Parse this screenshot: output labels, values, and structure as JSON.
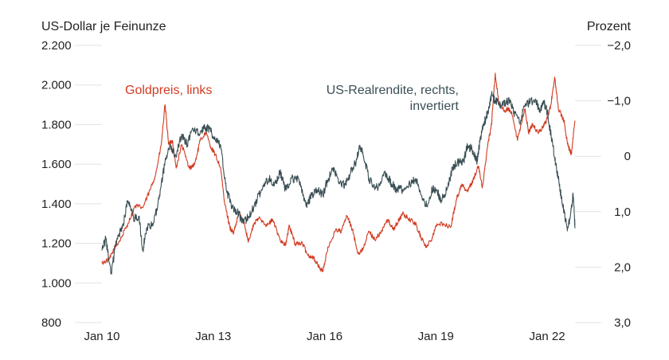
{
  "chart_data": {
    "type": "line",
    "x_start": 2010.0,
    "x_end": 2022.75,
    "left_axis": {
      "title": "US-Dollar je Feinunze",
      "ylim": [
        800,
        2200
      ],
      "ticks": [
        800,
        1000,
        1200,
        1400,
        1600,
        1800,
        2000,
        2200
      ],
      "tick_labels": [
        "800",
        "1.000",
        "1.200",
        "1.400",
        "1.600",
        "1.800",
        "2.000",
        "2.200"
      ]
    },
    "right_axis": {
      "title": "Prozent",
      "inverted": true,
      "ylim": [
        3.0,
        -2.0
      ],
      "ticks": [
        -2.0,
        -1.0,
        0,
        1.0,
        2.0,
        3.0
      ],
      "tick_labels": [
        "−2,0",
        "−1,0",
        "0",
        "1,0",
        "2,0",
        "3,0"
      ]
    },
    "x_ticks": [
      {
        "value": 2010,
        "label": "Jan 10"
      },
      {
        "value": 2013,
        "label": "Jan 13"
      },
      {
        "value": 2016,
        "label": "Jan 16"
      },
      {
        "value": 2019,
        "label": "Jan 19"
      },
      {
        "value": 2022,
        "label": "Jan 22"
      }
    ],
    "series": [
      {
        "name": "Goldpreis",
        "label_lines": [
          "Goldpreis, links"
        ],
        "axis": "left",
        "color": "#d13b22",
        "points": [
          [
            2010.0,
            1100
          ],
          [
            2010.2,
            1120
          ],
          [
            2010.35,
            1180
          ],
          [
            2010.5,
            1220
          ],
          [
            2010.7,
            1300
          ],
          [
            2010.9,
            1390
          ],
          [
            2011.1,
            1380
          ],
          [
            2011.3,
            1470
          ],
          [
            2011.45,
            1550
          ],
          [
            2011.6,
            1700
          ],
          [
            2011.7,
            1900
          ],
          [
            2011.8,
            1700
          ],
          [
            2011.9,
            1720
          ],
          [
            2012.0,
            1580
          ],
          [
            2012.15,
            1700
          ],
          [
            2012.35,
            1580
          ],
          [
            2012.5,
            1600
          ],
          [
            2012.65,
            1720
          ],
          [
            2012.8,
            1760
          ],
          [
            2012.95,
            1680
          ],
          [
            2013.05,
            1650
          ],
          [
            2013.2,
            1580
          ],
          [
            2013.3,
            1410
          ],
          [
            2013.45,
            1280
          ],
          [
            2013.55,
            1250
          ],
          [
            2013.7,
            1360
          ],
          [
            2013.85,
            1290
          ],
          [
            2013.95,
            1210
          ],
          [
            2014.1,
            1300
          ],
          [
            2014.25,
            1330
          ],
          [
            2014.45,
            1290
          ],
          [
            2014.6,
            1320
          ],
          [
            2014.8,
            1220
          ],
          [
            2014.95,
            1190
          ],
          [
            2015.05,
            1290
          ],
          [
            2015.2,
            1200
          ],
          [
            2015.4,
            1200
          ],
          [
            2015.55,
            1140
          ],
          [
            2015.7,
            1130
          ],
          [
            2015.85,
            1080
          ],
          [
            2015.95,
            1060
          ],
          [
            2016.1,
            1180
          ],
          [
            2016.3,
            1270
          ],
          [
            2016.45,
            1260
          ],
          [
            2016.6,
            1340
          ],
          [
            2016.75,
            1270
          ],
          [
            2016.9,
            1150
          ],
          [
            2017.0,
            1160
          ],
          [
            2017.2,
            1260
          ],
          [
            2017.35,
            1220
          ],
          [
            2017.5,
            1250
          ],
          [
            2017.7,
            1320
          ],
          [
            2017.85,
            1270
          ],
          [
            2017.95,
            1300
          ],
          [
            2018.1,
            1350
          ],
          [
            2018.3,
            1320
          ],
          [
            2018.45,
            1300
          ],
          [
            2018.6,
            1230
          ],
          [
            2018.75,
            1180
          ],
          [
            2018.9,
            1230
          ],
          [
            2019.0,
            1290
          ],
          [
            2019.2,
            1300
          ],
          [
            2019.4,
            1280
          ],
          [
            2019.55,
            1420
          ],
          [
            2019.7,
            1500
          ],
          [
            2019.85,
            1460
          ],
          [
            2020.0,
            1520
          ],
          [
            2020.15,
            1590
          ],
          [
            2020.25,
            1480
          ],
          [
            2020.4,
            1700
          ],
          [
            2020.5,
            1800
          ],
          [
            2020.6,
            2060
          ],
          [
            2020.7,
            1900
          ],
          [
            2020.85,
            1870
          ],
          [
            2020.95,
            1880
          ],
          [
            2021.05,
            1850
          ],
          [
            2021.2,
            1720
          ],
          [
            2021.4,
            1880
          ],
          [
            2021.5,
            1760
          ],
          [
            2021.6,
            1800
          ],
          [
            2021.75,
            1760
          ],
          [
            2021.9,
            1790
          ],
          [
            2022.0,
            1830
          ],
          [
            2022.1,
            1900
          ],
          [
            2022.2,
            2040
          ],
          [
            2022.3,
            1880
          ],
          [
            2022.45,
            1820
          ],
          [
            2022.55,
            1700
          ],
          [
            2022.65,
            1650
          ],
          [
            2022.75,
            1820
          ]
        ]
      },
      {
        "name": "US-Realrendite",
        "label_lines": [
          "US-Realrendite, rechts,",
          "invertiert"
        ],
        "axis": "right",
        "color": "#3a4f54",
        "points": [
          [
            2010.0,
            1.7
          ],
          [
            2010.1,
            1.5
          ],
          [
            2010.25,
            2.1
          ],
          [
            2010.4,
            1.5
          ],
          [
            2010.55,
            1.3
          ],
          [
            2010.7,
            0.8
          ],
          [
            2010.85,
            1.1
          ],
          [
            2011.0,
            1.1
          ],
          [
            2011.1,
            1.7
          ],
          [
            2011.2,
            1.3
          ],
          [
            2011.4,
            1.2
          ],
          [
            2011.55,
            0.7
          ],
          [
            2011.7,
            0.1
          ],
          [
            2011.85,
            -0.2
          ],
          [
            2012.0,
            0.0
          ],
          [
            2012.15,
            -0.4
          ],
          [
            2012.3,
            -0.2
          ],
          [
            2012.45,
            -0.5
          ],
          [
            2012.6,
            -0.4
          ],
          [
            2012.75,
            -0.5
          ],
          [
            2012.9,
            -0.5
          ],
          [
            2013.05,
            -0.3
          ],
          [
            2013.2,
            -0.2
          ],
          [
            2013.35,
            0.6
          ],
          [
            2013.5,
            0.9
          ],
          [
            2013.65,
            1.0
          ],
          [
            2013.8,
            1.2
          ],
          [
            2013.95,
            1.1
          ],
          [
            2014.1,
            0.9
          ],
          [
            2014.3,
            0.6
          ],
          [
            2014.5,
            0.4
          ],
          [
            2014.65,
            0.5
          ],
          [
            2014.8,
            0.3
          ],
          [
            2014.95,
            0.6
          ],
          [
            2015.1,
            0.4
          ],
          [
            2015.3,
            0.4
          ],
          [
            2015.5,
            0.9
          ],
          [
            2015.65,
            0.7
          ],
          [
            2015.8,
            0.6
          ],
          [
            2015.95,
            0.7
          ],
          [
            2016.1,
            0.4
          ],
          [
            2016.25,
            0.2
          ],
          [
            2016.4,
            0.5
          ],
          [
            2016.55,
            0.5
          ],
          [
            2016.7,
            0.3
          ],
          [
            2016.85,
            0.1
          ],
          [
            2016.95,
            -0.2
          ],
          [
            2017.05,
            0.0
          ],
          [
            2017.2,
            0.4
          ],
          [
            2017.35,
            0.6
          ],
          [
            2017.5,
            0.5
          ],
          [
            2017.65,
            0.3
          ],
          [
            2017.8,
            0.5
          ],
          [
            2017.95,
            0.6
          ],
          [
            2018.1,
            0.6
          ],
          [
            2018.3,
            0.5
          ],
          [
            2018.45,
            0.4
          ],
          [
            2018.6,
            0.7
          ],
          [
            2018.75,
            0.9
          ],
          [
            2018.9,
            0.6
          ],
          [
            2019.0,
            0.6
          ],
          [
            2019.15,
            0.8
          ],
          [
            2019.3,
            0.6
          ],
          [
            2019.45,
            0.2
          ],
          [
            2019.6,
            0.1
          ],
          [
            2019.75,
            0.1
          ],
          [
            2019.85,
            -0.2
          ],
          [
            2020.0,
            -0.1
          ],
          [
            2020.1,
            0.1
          ],
          [
            2020.2,
            -0.3
          ],
          [
            2020.3,
            -0.6
          ],
          [
            2020.4,
            -0.8
          ],
          [
            2020.5,
            -1.1
          ],
          [
            2020.6,
            -1.0
          ],
          [
            2020.75,
            -0.9
          ],
          [
            2020.9,
            -1.0
          ],
          [
            2021.0,
            -1.0
          ],
          [
            2021.1,
            -0.8
          ],
          [
            2021.25,
            -0.6
          ],
          [
            2021.4,
            -0.9
          ],
          [
            2021.55,
            -1.0
          ],
          [
            2021.7,
            -1.0
          ],
          [
            2021.8,
            -0.8
          ],
          [
            2021.9,
            -1.0
          ],
          [
            2022.0,
            -0.8
          ],
          [
            2022.15,
            -0.2
          ],
          [
            2022.25,
            0.2
          ],
          [
            2022.35,
            0.6
          ],
          [
            2022.45,
            1.0
          ],
          [
            2022.55,
            1.3
          ],
          [
            2022.62,
            1.1
          ],
          [
            2022.7,
            0.7
          ],
          [
            2022.75,
            1.3
          ]
        ]
      }
    ]
  }
}
